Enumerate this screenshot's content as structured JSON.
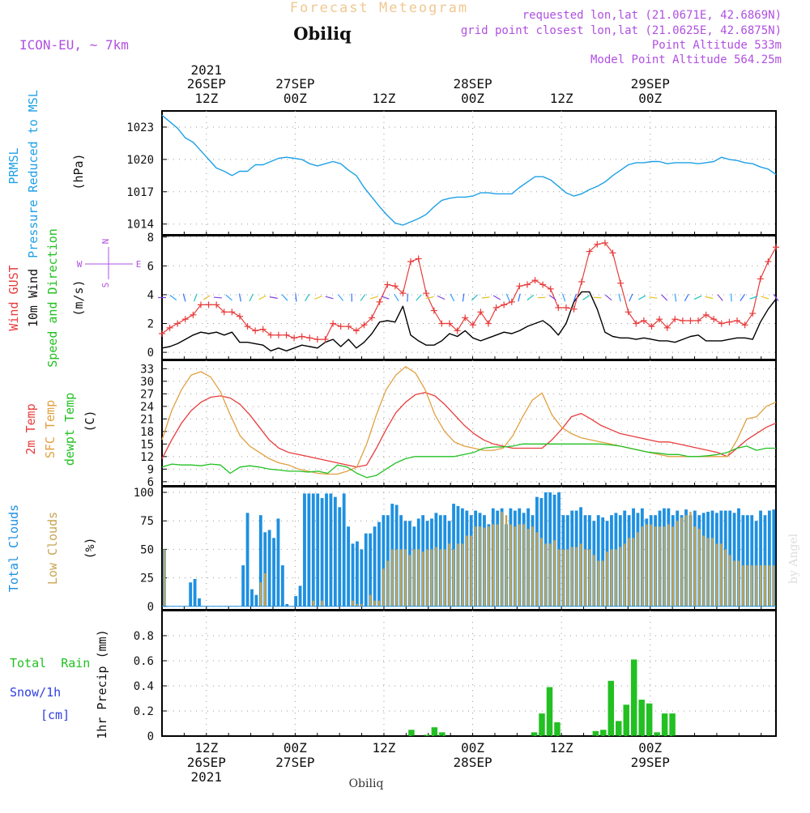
{
  "header": {
    "title": "Forecast Meteogram",
    "location": "Obiliq",
    "model": "ICON-EU, ~ 7km",
    "requested": "requested lon,lat (21.0671E, 42.6869N)",
    "gridpoint": "grid point closest lon,lat (21.0625E, 42.6875N)",
    "point_alt": "Point Altitude 533m",
    "model_alt": "Model Point Altitude 564.25m",
    "footer_location": "Obiliq",
    "watermark": "by Angel"
  },
  "time_axis": {
    "start_hour": 0,
    "end_hour": 83,
    "major_ticks": [
      {
        "hour": 6,
        "label": "12Z",
        "date": "26SEP",
        "year": "2021"
      },
      {
        "hour": 18,
        "label": "00Z",
        "date": "27SEP",
        "year": ""
      },
      {
        "hour": 30,
        "label": "12Z",
        "date": "",
        "year": ""
      },
      {
        "hour": 42,
        "label": "00Z",
        "date": "28SEP",
        "year": ""
      },
      {
        "hour": 54,
        "label": "12Z",
        "date": "",
        "year": ""
      },
      {
        "hour": 66,
        "label": "00Z",
        "date": "29SEP",
        "year": ""
      }
    ],
    "note": "hour index 0 = 26SEP 06Z"
  },
  "panels": {
    "pressure": {
      "labels": [
        "PRMSL",
        "Pressure Reduced to MSL"
      ],
      "unit": "(hPa)"
    },
    "wind": {
      "labels": [
        "Wind GUST",
        "10m Wind",
        "Speed and Direction"
      ],
      "unit": "(m/s)",
      "compass": {
        "n": "N",
        "s": "S",
        "w": "W",
        "e": "E"
      }
    },
    "temp": {
      "labels": [
        "2m Temp",
        "SFC Temp",
        "dewpt Temp"
      ],
      "unit": "(C)"
    },
    "clouds": {
      "labels": [
        "Total Clouds",
        "Low Clouds"
      ],
      "unit": "(%)"
    },
    "precip": {
      "labels": [
        "Total  Rain",
        "Snow/1h",
        "[cm]"
      ],
      "unit": "1hr Precip (mm)"
    }
  },
  "colors": {
    "pressure": "#1ea0e6",
    "gust": "#e83c3c",
    "wind": "#000000",
    "temp2m": "#e83c3c",
    "sfc": "#e0a040",
    "dewpt": "#22c022",
    "total_cloud": "#1e90e0",
    "low_cloud": "#c8a450",
    "rain": "#22c022",
    "snow": "#3040e0",
    "label_purple": "#b050e0",
    "title_orange": "#f0c890"
  },
  "chart_data": [
    {
      "type": "line",
      "name": "PRMSL",
      "ylabel": "(hPa)",
      "ylim": [
        1013,
        1024.5
      ],
      "yticks": [
        1014,
        1017,
        1020,
        1023
      ],
      "values": [
        1024.1,
        1023.5,
        1022.9,
        1022.0,
        1021.6,
        1020.8,
        1020.0,
        1019.2,
        1018.9,
        1018.5,
        1018.9,
        1018.9,
        1019.5,
        1019.5,
        1019.8,
        1020.1,
        1020.2,
        1020.1,
        1020.0,
        1019.6,
        1019.4,
        1019.6,
        1019.8,
        1019.6,
        1019.0,
        1018.5,
        1017.4,
        1016.5,
        1015.6,
        1014.8,
        1014.1,
        1013.9,
        1014.2,
        1014.5,
        1014.9,
        1015.6,
        1016.2,
        1016.4,
        1016.5,
        1016.5,
        1016.6,
        1016.9,
        1016.9,
        1016.8,
        1016.8,
        1016.8,
        1017.4,
        1017.9,
        1018.4,
        1018.4,
        1018.1,
        1017.5,
        1016.9,
        1016.6,
        1016.8,
        1017.2,
        1017.5,
        1017.9,
        1018.5,
        1019.0,
        1019.5,
        1019.7,
        1019.7,
        1019.8,
        1019.8,
        1019.6,
        1019.7,
        1019.7,
        1019.7,
        1019.6,
        1019.7,
        1019.8,
        1020.2,
        1020.0,
        1019.9,
        1019.7,
        1019.6,
        1019.3,
        1019.1,
        1018.6
      ],
      "series_names": [
        "PRMSL"
      ]
    },
    {
      "type": "line",
      "name": "wind",
      "ylabel": "(m/s)",
      "ylim": [
        -0.5,
        8.1
      ],
      "yticks": [
        0,
        2,
        4,
        6,
        8
      ],
      "series": [
        {
          "name": "Wind GUST",
          "values": [
            1.3,
            1.7,
            2.0,
            2.3,
            2.6,
            3.3,
            3.3,
            3.3,
            2.8,
            2.8,
            2.5,
            1.8,
            1.5,
            1.6,
            1.2,
            1.2,
            1.2,
            1.0,
            1.1,
            1.0,
            0.9,
            0.9,
            2.0,
            1.8,
            1.8,
            1.5,
            1.9,
            2.4,
            3.5,
            4.7,
            4.6,
            4.1,
            6.3,
            6.5,
            4.1,
            2.9,
            2.0,
            2.0,
            1.5,
            2.4,
            1.9,
            2.8,
            2.0,
            3.1,
            3.3,
            3.5,
            4.6,
            4.7,
            5.0,
            4.7,
            4.4,
            3.1,
            3.1,
            3.0,
            4.9,
            7.0,
            7.5,
            7.6,
            6.9,
            4.8,
            2.8,
            2.0,
            2.2,
            1.8,
            2.3,
            1.7,
            2.3,
            2.2,
            2.2,
            2.2,
            2.6,
            2.3,
            2.0,
            2.1,
            2.2,
            1.9,
            2.7,
            5.1,
            6.3,
            7.3
          ]
        },
        {
          "name": "10m Wind",
          "values": [
            0.3,
            0.4,
            0.6,
            0.9,
            1.2,
            1.4,
            1.3,
            1.4,
            1.2,
            1.4,
            0.7,
            0.7,
            0.6,
            0.5,
            0.1,
            0.3,
            0.1,
            0.3,
            0.5,
            0.4,
            0.3,
            0.7,
            0.9,
            0.4,
            0.9,
            0.3,
            0.7,
            1.3,
            2.1,
            2.2,
            2.1,
            3.2,
            1.2,
            0.8,
            0.5,
            0.5,
            0.8,
            1.3,
            1.1,
            1.5,
            1.0,
            0.8,
            1.0,
            1.2,
            1.4,
            1.3,
            1.5,
            1.8,
            2.0,
            2.2,
            1.8,
            1.2,
            2.0,
            3.5,
            4.2,
            4.2,
            3.0,
            1.4,
            1.1,
            1.0,
            1.0,
            0.9,
            1.0,
            0.9,
            0.8,
            0.8,
            0.7,
            0.9,
            1.1,
            1.2,
            0.8,
            0.8,
            0.8,
            0.9,
            1.0,
            1.0,
            0.9,
            2.1,
            3.0,
            3.7
          ]
        }
      ]
    },
    {
      "type": "line",
      "name": "temperature",
      "ylabel": "(C)",
      "ylim": [
        5,
        35
      ],
      "yticks": [
        6,
        9,
        12,
        15,
        18,
        21,
        24,
        27,
        30,
        33
      ],
      "series": [
        {
          "name": "2m Temp",
          "values": [
            11.5,
            16.0,
            20.0,
            23.0,
            25.0,
            26.2,
            26.5,
            26.0,
            24.5,
            22.0,
            19.0,
            16.0,
            14.0,
            13.0,
            12.5,
            12.0,
            11.5,
            11.0,
            10.5,
            10.0,
            9.5,
            10.0,
            14.0,
            18.5,
            22.5,
            25.0,
            26.8,
            27.3,
            26.5,
            24.5,
            22.0,
            19.5,
            17.5,
            16.0,
            15.0,
            14.5,
            14.0,
            14.0,
            14.0,
            14.0,
            16.0,
            18.5,
            21.5,
            22.3,
            21.0,
            19.5,
            18.5,
            17.5,
            17.0,
            16.5,
            16.0,
            15.5,
            15.5,
            15.0,
            14.5,
            14.0,
            13.5,
            13.0,
            12.0,
            14.0,
            16.0,
            17.5,
            19.0,
            20.0
          ]
        },
        {
          "name": "SFC Temp",
          "values": [
            16.0,
            23.0,
            28.0,
            31.5,
            32.3,
            31.0,
            27.5,
            22.0,
            17.0,
            14.5,
            13.0,
            11.5,
            10.5,
            10.0,
            9.0,
            8.5,
            8.0,
            7.8,
            7.8,
            8.5,
            9.5,
            15.0,
            22.0,
            28.0,
            31.5,
            33.5,
            32.0,
            28.0,
            22.0,
            18.0,
            15.5,
            14.5,
            14.0,
            13.5,
            13.5,
            14.0,
            17.0,
            21.5,
            25.5,
            27.2,
            22.0,
            19.0,
            17.5,
            16.5,
            16.0,
            15.5,
            15.0,
            14.5,
            14.0,
            13.5,
            13.0,
            12.5,
            12.0,
            12.0,
            12.0,
            12.0,
            12.0,
            12.0,
            12.0,
            16.0,
            21.0,
            21.5,
            24.0,
            25.0
          ]
        },
        {
          "name": "dewpt Temp",
          "values": [
            9.5,
            10.2,
            10.0,
            10.0,
            9.8,
            10.2,
            10.0,
            8.0,
            9.5,
            9.8,
            9.5,
            9.0,
            8.8,
            8.5,
            8.5,
            8.3,
            8.5,
            8.0,
            10.0,
            9.5,
            8.0,
            7.0,
            7.5,
            9.0,
            10.5,
            11.5,
            12.0,
            12.0,
            12.0,
            12.0,
            12.0,
            12.5,
            13.0,
            14.0,
            14.3,
            14.3,
            14.5,
            15.0,
            15.0,
            15.0,
            15.0,
            15.0,
            15.0,
            15.0,
            15.0,
            15.0,
            14.8,
            14.5,
            14.0,
            13.5,
            13.0,
            12.8,
            12.5,
            12.5,
            12.0,
            12.0,
            12.2,
            12.5,
            13.0,
            14.0,
            14.5,
            13.5,
            14.0,
            14.0
          ]
        }
      ]
    },
    {
      "type": "bar",
      "name": "clouds",
      "ylabel": "(%)",
      "ylim": [
        -3,
        105
      ],
      "yticks": [
        0,
        25,
        50,
        75,
        100
      ],
      "series": [
        {
          "name": "Total Clouds",
          "values": [
            50,
            0,
            0,
            0,
            0,
            0,
            21,
            24,
            7,
            0,
            0,
            0,
            0,
            0,
            0,
            0,
            0,
            0,
            36,
            82,
            15,
            10,
            80,
            65,
            67,
            60,
            77,
            36,
            2,
            0,
            9,
            18,
            99,
            99,
            99,
            99,
            95,
            99,
            99,
            96,
            87,
            99,
            70,
            55,
            57,
            50,
            64,
            64,
            70,
            74,
            80,
            80,
            90,
            89,
            80,
            75,
            75,
            70,
            77,
            80,
            75,
            77,
            82,
            80,
            80,
            75,
            90,
            88,
            86,
            84,
            80,
            84,
            82,
            80,
            72,
            86,
            84,
            86,
            72,
            86,
            84,
            86,
            82,
            86,
            80,
            96,
            95,
            100,
            100,
            98,
            100,
            80,
            80,
            84,
            84,
            87,
            80,
            80,
            75,
            80,
            78,
            75,
            80,
            82,
            80,
            84,
            80,
            86,
            82,
            86,
            77,
            80,
            80,
            84,
            86,
            86,
            80,
            84,
            80,
            85,
            80,
            84,
            80,
            82,
            83,
            84,
            82,
            84,
            84,
            84,
            82,
            86,
            80,
            80,
            80,
            75,
            84,
            80,
            84,
            85
          ]
        },
        {
          "name": "Low Clouds",
          "values": [
            50,
            0,
            0,
            0,
            0,
            0,
            0,
            0,
            0,
            0,
            0,
            0,
            0,
            0,
            0,
            0,
            0,
            0,
            0,
            0,
            0,
            0,
            21,
            29,
            0,
            0,
            0,
            0,
            0,
            0,
            0,
            0,
            0,
            0,
            5,
            0,
            5,
            0,
            0,
            0,
            0,
            0,
            0,
            5,
            2,
            2,
            0,
            10,
            5,
            5,
            33,
            40,
            50,
            50,
            50,
            50,
            45,
            50,
            50,
            48,
            50,
            50,
            52,
            50,
            50,
            55,
            50,
            55,
            55,
            62,
            62,
            70,
            70,
            69,
            70,
            72,
            72,
            83,
            80,
            72,
            70,
            72,
            72,
            68,
            70,
            65,
            60,
            55,
            55,
            58,
            50,
            50,
            50,
            52,
            52,
            55,
            50,
            50,
            45,
            40,
            40,
            48,
            50,
            50,
            52,
            55,
            60,
            60,
            65,
            70,
            72,
            72,
            70,
            70,
            70,
            72,
            70,
            75,
            78,
            80,
            83,
            70,
            68,
            62,
            60,
            60,
            55,
            55,
            50,
            45,
            40,
            40,
            36,
            36,
            36,
            36,
            36,
            36,
            36,
            36
          ]
        }
      ]
    },
    {
      "type": "bar",
      "name": "precipitation",
      "ylabel": "1hr Precip (mm)",
      "ylim": [
        0,
        1.0
      ],
      "yticks": [
        0,
        0.2,
        0.4,
        0.6,
        0.8
      ],
      "series": [
        {
          "name": "Total Rain",
          "values": [
            0,
            0,
            0,
            0,
            0,
            0,
            0,
            0,
            0,
            0,
            0,
            0,
            0,
            0,
            0,
            0,
            0,
            0,
            0,
            0,
            0,
            0,
            0,
            0,
            0,
            0,
            0,
            0,
            0,
            0,
            0,
            0,
            0.05,
            0,
            0.01,
            0.07,
            0.03,
            0,
            0,
            0,
            0,
            0,
            0,
            0,
            0,
            0,
            0,
            0,
            0.03,
            0.18,
            0.39,
            0.11,
            0,
            0,
            0,
            0,
            0.04,
            0.05,
            0.44,
            0.12,
            0.25,
            0.61,
            0.29,
            0.26,
            0.03,
            0.18,
            0.18,
            0,
            0,
            0,
            0,
            0,
            0,
            0,
            0,
            0,
            0,
            0,
            0,
            0
          ]
        }
      ]
    }
  ]
}
